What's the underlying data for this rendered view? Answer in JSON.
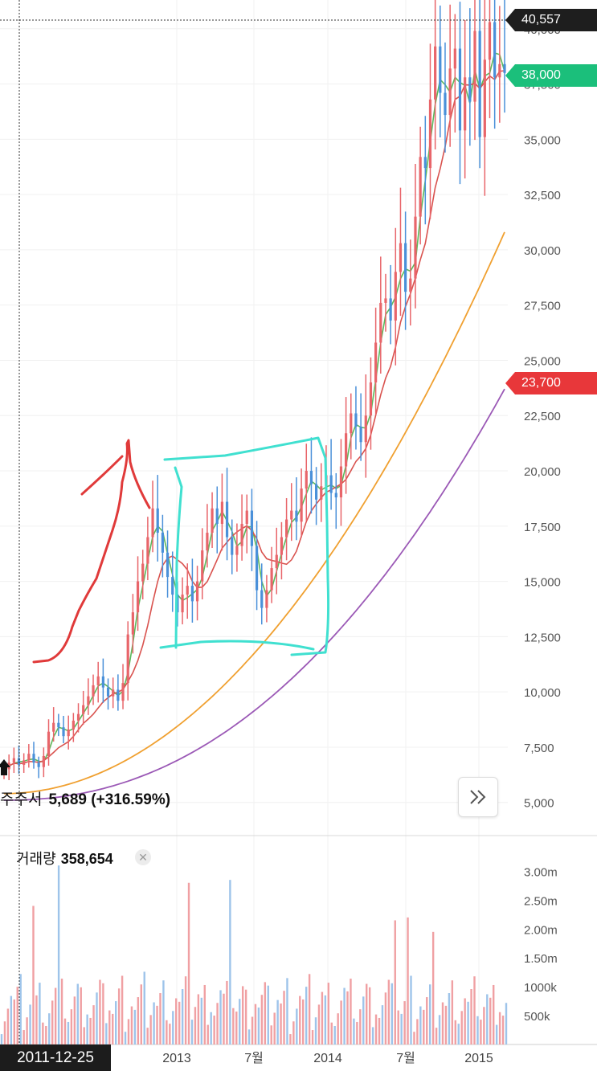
{
  "price_tags": {
    "high": "40,557",
    "current": "38,000",
    "moving_average": "23,700"
  },
  "ticker": {
    "name": "주주서",
    "summary": "5,689 (+316.59%)"
  },
  "volume": {
    "label": "거래량",
    "value": "358,654"
  },
  "cursor_date": "2011-12-25",
  "colors": {
    "up": "#e8656a",
    "down": "#4a90d9",
    "ma5": "#5cb85c",
    "ma20": "#d9534f",
    "ma60": "#f0a030",
    "ma120": "#9b59b6",
    "annotation_red": "#e03a3a",
    "annotation_cyan": "#40e0d0"
  },
  "chart_data": [
    {
      "type": "candlestick",
      "title": "",
      "y_axis": {
        "ticks": [
          "5,000",
          "7,500",
          "10,000",
          "12,500",
          "15,000",
          "17,500",
          "20,000",
          "22,500",
          "25,000",
          "27,500",
          "30,000",
          "32,500",
          "35,000",
          "37,500",
          "40,000"
        ],
        "range": [
          3500,
          41300
        ]
      },
      "x_axis": {
        "ticks": [
          "2013",
          "7월",
          "2014",
          "7월",
          "2015"
        ]
      },
      "moving_averages": [
        {
          "id": "ma5",
          "end": 39500
        },
        {
          "id": "ma20",
          "end": 37700
        },
        {
          "id": "ma60",
          "end": 30800
        },
        {
          "id": "ma120",
          "end": 23700
        }
      ],
      "close": [
        6500,
        6800,
        7000,
        6700,
        6900,
        7200,
        6800,
        6600,
        7100,
        8200,
        8600,
        8400,
        8000,
        8300,
        8700,
        9000,
        9400,
        9800,
        10300,
        10700,
        10200,
        9800,
        10100,
        9600,
        10400,
        12600,
        13600,
        15000,
        15800,
        17000,
        18300,
        17200,
        16300,
        15200,
        14400,
        13600,
        14400,
        14800,
        14100,
        15000,
        16400,
        17200,
        18300,
        17600,
        18600,
        17000,
        16200,
        16600,
        17600,
        18200,
        16600,
        14600,
        13800,
        14600,
        15600,
        16200,
        17000,
        17800,
        18200,
        17700,
        19200,
        20000,
        19400,
        18700,
        19300,
        19800,
        19000,
        18800,
        20200,
        21700,
        22600,
        22000,
        21300,
        22500,
        24000,
        25800,
        27600,
        27800,
        26800,
        29000,
        30300,
        28100,
        28700,
        31500,
        34200,
        33700,
        36800,
        39200,
        37100,
        36100,
        38200,
        39100,
        35400,
        37800,
        36700,
        39900,
        35100,
        38600,
        40300,
        37800,
        38400,
        38000
      ]
    },
    {
      "type": "bar",
      "y_axis": {
        "ticks": [
          "500k",
          "1000k",
          "1.50m",
          "2.00m",
          "2.50m",
          "3.00m"
        ],
        "range": [
          0,
          3200000
        ]
      },
      "x_axis": {
        "ticks": [
          "2013",
          "7월",
          "2014",
          "7월",
          "2015"
        ]
      },
      "volume_peaks": [
        2400000,
        3100000,
        2800000,
        2850000,
        2150000,
        1950000,
        2200000
      ]
    }
  ]
}
